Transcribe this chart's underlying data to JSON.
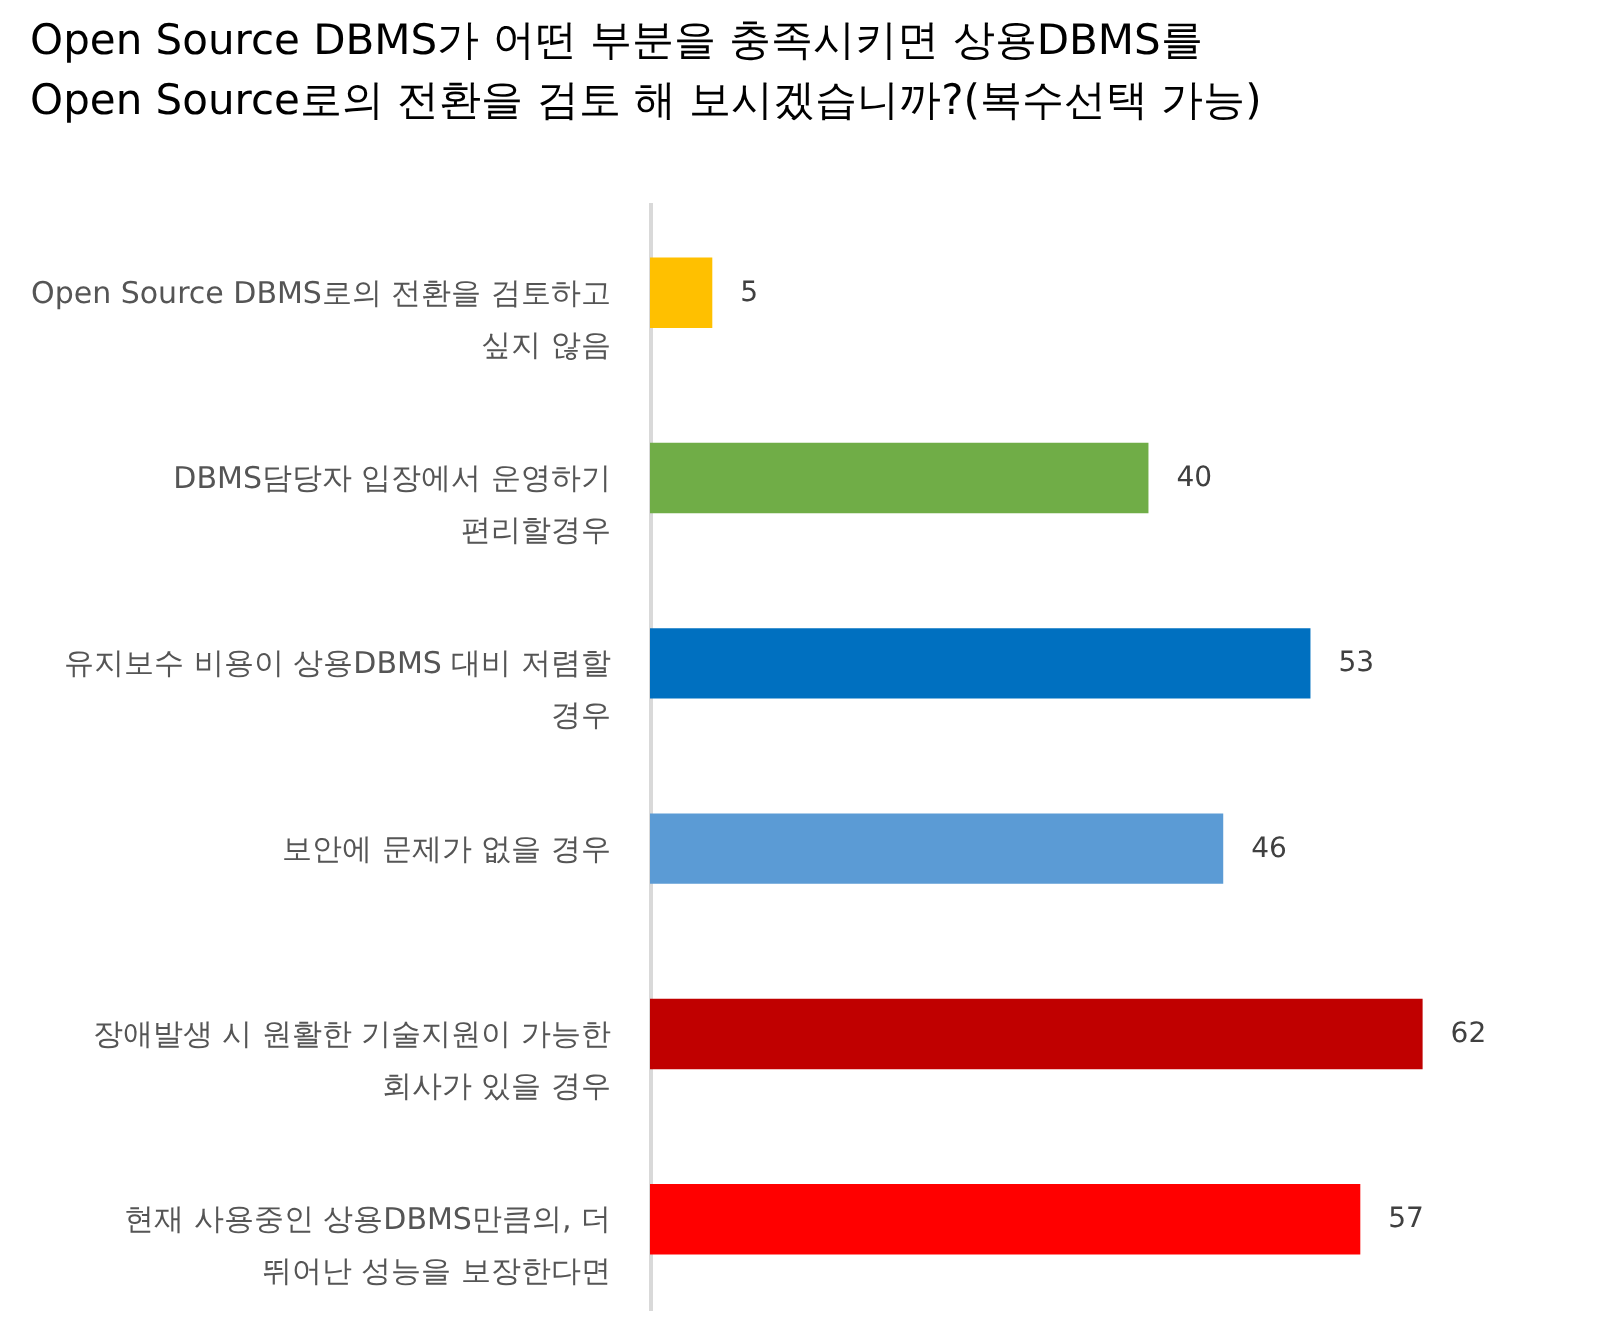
{
  "chart_data": {
    "type": "bar",
    "orientation": "horizontal",
    "title": "Open Source DBMS가 어떤 부분을 충족시키면 상용DBMS를\nOpen Source로의 전환을 검토 해 보시겠습니까?(복수선택 가능)",
    "categories": [
      "Open Source DBMS로의 전환을 검토하고\n싶지 않음",
      "DBMS담당자 입장에서 운영하기\n편리할경우",
      "유지보수 비용이 상용DBMS 대비 저렴할\n경우",
      "보안에 문제가 없을 경우",
      "장애발생 시 원활한 기술지원이 가능한\n회사가 있을 경우",
      "현재 사용중인 상용DBMS만큼의, 더\n뛰어난 성능을 보장한다면"
    ],
    "values": [
      5,
      40,
      53,
      46,
      62,
      57
    ],
    "colors": [
      "#ffc000",
      "#70ad47",
      "#0070c0",
      "#5b9bd5",
      "#c00000",
      "#ff0000"
    ],
    "data_labels": true,
    "grid": false
  }
}
